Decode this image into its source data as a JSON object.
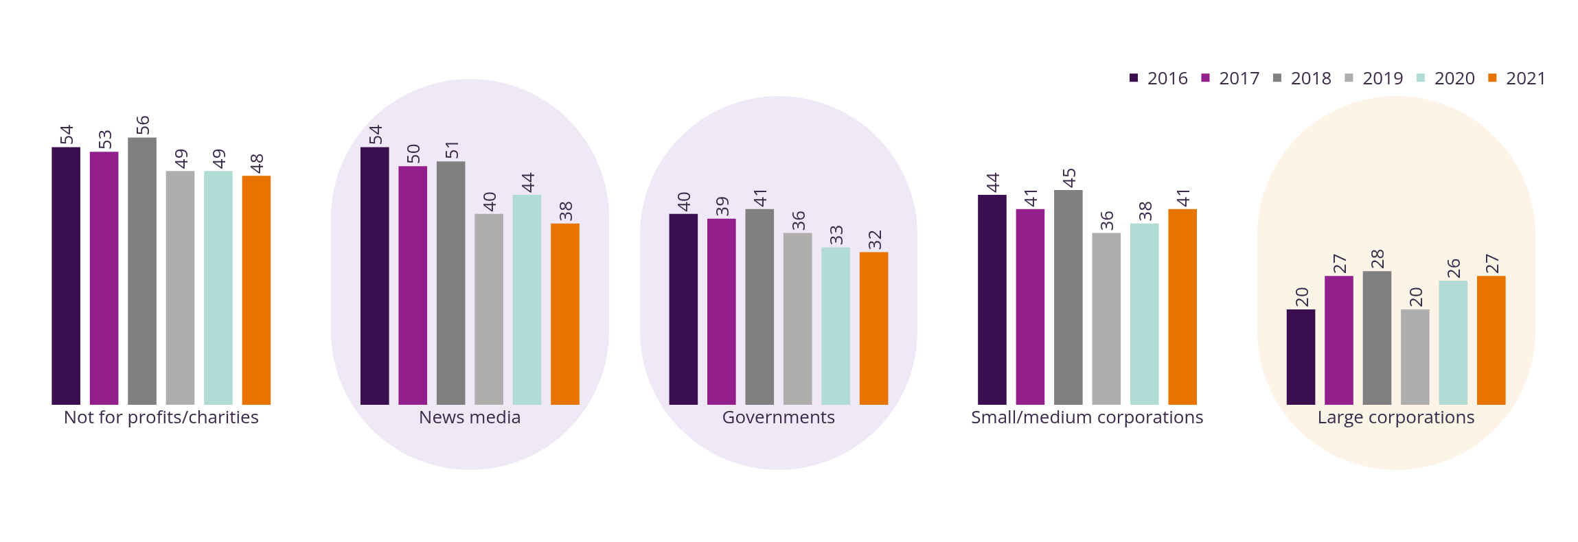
{
  "chart_data": {
    "type": "bar",
    "categories": [
      "Not for profits/charities",
      "News media",
      "Governments",
      "Small/medium corporations",
      "Large corporations"
    ],
    "series": [
      {
        "name": "2016",
        "color": "#3b0f4f",
        "values": [
          54,
          54,
          40,
          44,
          20
        ]
      },
      {
        "name": "2017",
        "color": "#931f8c",
        "values": [
          53,
          50,
          39,
          41,
          27
        ]
      },
      {
        "name": "2018",
        "color": "#808080",
        "values": [
          56,
          51,
          41,
          45,
          28
        ]
      },
      {
        "name": "2019",
        "color": "#b0adad",
        "values": [
          49,
          40,
          36,
          36,
          20
        ]
      },
      {
        "name": "2020",
        "color": "#b0dcd5",
        "values": [
          49,
          44,
          33,
          38,
          26
        ]
      },
      {
        "name": "2021",
        "color": "#e87400",
        "values": [
          48,
          38,
          32,
          41,
          27
        ]
      }
    ],
    "data_labels": true,
    "legend": "top right",
    "grid": false,
    "tick_labels": "x"
  }
}
